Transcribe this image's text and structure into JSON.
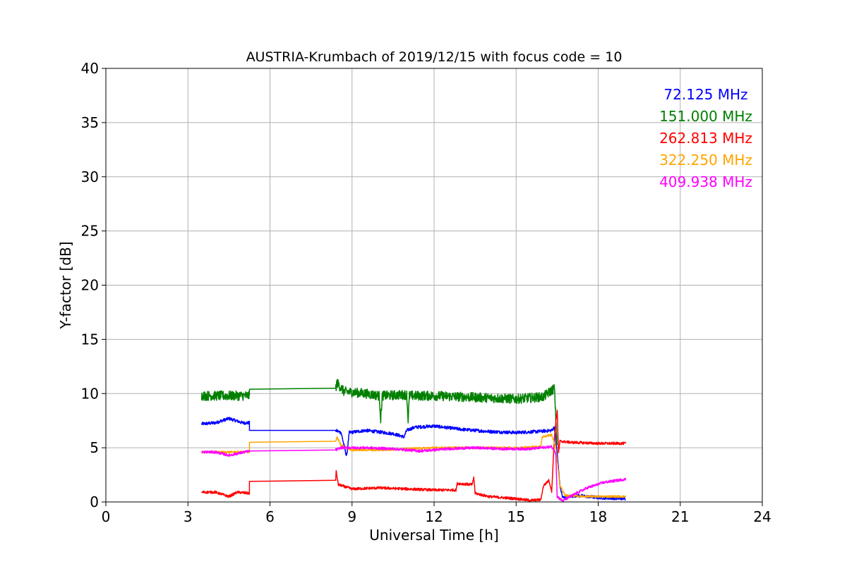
{
  "chart_data": {
    "type": "line",
    "title": "AUSTRIA-Krumbach of 2019/12/15 with focus code = 10",
    "xlabel": "Universal Time [h]",
    "ylabel": "Y-factor [dB]",
    "xlim": [
      0,
      24
    ],
    "ylim": [
      0,
      40
    ],
    "xticks": [
      0,
      3,
      6,
      9,
      12,
      15,
      18,
      21,
      24
    ],
    "yticks": [
      0,
      5,
      10,
      15,
      20,
      25,
      30,
      35,
      40
    ],
    "grid": true,
    "legend_position": "top-right",
    "series": [
      {
        "name": "72.125 MHz",
        "color": "#0000ff",
        "noise": 0.15,
        "points": [
          [
            3.5,
            7.2
          ],
          [
            4.0,
            7.3
          ],
          [
            4.5,
            7.7
          ],
          [
            5.0,
            7.3
          ],
          [
            5.25,
            7.3
          ],
          [
            5.25,
            6.6
          ],
          [
            8.4,
            6.6
          ],
          [
            8.6,
            6.4
          ],
          [
            8.8,
            4.2
          ],
          [
            8.9,
            6.4
          ],
          [
            9.5,
            6.6
          ],
          [
            10.5,
            6.3
          ],
          [
            10.9,
            6.0
          ],
          [
            11.0,
            6.6
          ],
          [
            11.3,
            6.9
          ],
          [
            12.0,
            7.0
          ],
          [
            13.0,
            6.7
          ],
          [
            14.0,
            6.5
          ],
          [
            15.0,
            6.4
          ],
          [
            15.8,
            6.5
          ],
          [
            16.3,
            6.6
          ],
          [
            16.4,
            6.9
          ],
          [
            16.5,
            4.5
          ],
          [
            16.6,
            1.5
          ],
          [
            16.7,
            0.4
          ],
          [
            17.2,
            0.6
          ],
          [
            18.0,
            0.4
          ],
          [
            19.0,
            0.3
          ]
        ]
      },
      {
        "name": "151.000 MHz",
        "color": "#008000",
        "noise": 0.45,
        "points": [
          [
            3.5,
            9.8
          ],
          [
            4.0,
            9.8
          ],
          [
            5.0,
            9.8
          ],
          [
            5.25,
            9.8
          ],
          [
            5.25,
            10.4
          ],
          [
            8.4,
            10.5
          ],
          [
            8.45,
            11.0
          ],
          [
            8.7,
            10.2
          ],
          [
            9.5,
            10.0
          ],
          [
            10.0,
            9.8
          ],
          [
            10.05,
            7.5
          ],
          [
            10.1,
            9.8
          ],
          [
            11.0,
            9.9
          ],
          [
            11.05,
            7.6
          ],
          [
            11.1,
            9.8
          ],
          [
            12.0,
            9.8
          ],
          [
            13.0,
            9.7
          ],
          [
            14.0,
            9.6
          ],
          [
            15.0,
            9.5
          ],
          [
            16.0,
            9.7
          ],
          [
            16.4,
            10.5
          ],
          [
            16.5,
            5.0
          ]
        ]
      },
      {
        "name": "262.813 MHz",
        "color": "#ff0000",
        "noise": 0.12,
        "points": [
          [
            3.5,
            0.9
          ],
          [
            4.0,
            0.9
          ],
          [
            4.5,
            0.5
          ],
          [
            4.8,
            0.9
          ],
          [
            5.25,
            0.8
          ],
          [
            5.25,
            1.9
          ],
          [
            8.4,
            2.0
          ],
          [
            8.42,
            2.8
          ],
          [
            8.5,
            1.6
          ],
          [
            9.0,
            1.2
          ],
          [
            10.0,
            1.3
          ],
          [
            11.0,
            1.2
          ],
          [
            12.0,
            1.1
          ],
          [
            12.8,
            1.1
          ],
          [
            12.85,
            1.7
          ],
          [
            13.4,
            1.6
          ],
          [
            13.45,
            2.3
          ],
          [
            13.5,
            0.8
          ],
          [
            14.0,
            0.5
          ],
          [
            15.0,
            0.3
          ],
          [
            15.5,
            0.15
          ],
          [
            15.9,
            0.2
          ],
          [
            16.0,
            1.5
          ],
          [
            16.2,
            2.0
          ],
          [
            16.3,
            1.0
          ],
          [
            16.4,
            6.0
          ],
          [
            16.5,
            8.5
          ],
          [
            16.55,
            4.5
          ],
          [
            16.6,
            5.6
          ],
          [
            17.0,
            5.5
          ],
          [
            18.0,
            5.4
          ],
          [
            19.0,
            5.4
          ]
        ]
      },
      {
        "name": "322.250 MHz",
        "color": "#ffa500",
        "noise": 0.1,
        "points": [
          [
            3.5,
            4.6
          ],
          [
            4.5,
            4.6
          ],
          [
            5.25,
            4.6
          ],
          [
            5.25,
            5.5
          ],
          [
            8.4,
            5.6
          ],
          [
            8.45,
            6.0
          ],
          [
            8.6,
            5.2
          ],
          [
            9.0,
            4.8
          ],
          [
            10.0,
            4.8
          ],
          [
            11.0,
            4.9
          ],
          [
            12.0,
            5.0
          ],
          [
            13.0,
            5.0
          ],
          [
            14.0,
            5.0
          ],
          [
            15.0,
            5.0
          ],
          [
            15.9,
            5.1
          ],
          [
            15.95,
            6.0
          ],
          [
            16.3,
            6.2
          ],
          [
            16.45,
            5.0
          ],
          [
            16.6,
            1.5
          ],
          [
            16.8,
            0.6
          ],
          [
            17.5,
            0.5
          ],
          [
            18.5,
            0.5
          ],
          [
            19.0,
            0.5
          ]
        ]
      },
      {
        "name": "409.938 MHz",
        "color": "#ff00ff",
        "noise": 0.12,
        "points": [
          [
            3.5,
            4.6
          ],
          [
            4.0,
            4.6
          ],
          [
            4.5,
            4.3
          ],
          [
            5.25,
            4.7
          ],
          [
            5.25,
            4.7
          ],
          [
            8.4,
            4.8
          ],
          [
            8.6,
            5.0
          ],
          [
            9.5,
            5.0
          ],
          [
            10.5,
            4.9
          ],
          [
            11.5,
            4.7
          ],
          [
            12.5,
            4.9
          ],
          [
            13.5,
            5.0
          ],
          [
            14.5,
            4.9
          ],
          [
            15.5,
            4.9
          ],
          [
            16.3,
            5.1
          ],
          [
            16.45,
            4.5
          ],
          [
            16.5,
            0.5
          ],
          [
            16.7,
            0.1
          ],
          [
            17.2,
            0.8
          ],
          [
            17.6,
            1.3
          ],
          [
            18.2,
            1.8
          ],
          [
            19.0,
            2.1
          ]
        ]
      }
    ]
  }
}
